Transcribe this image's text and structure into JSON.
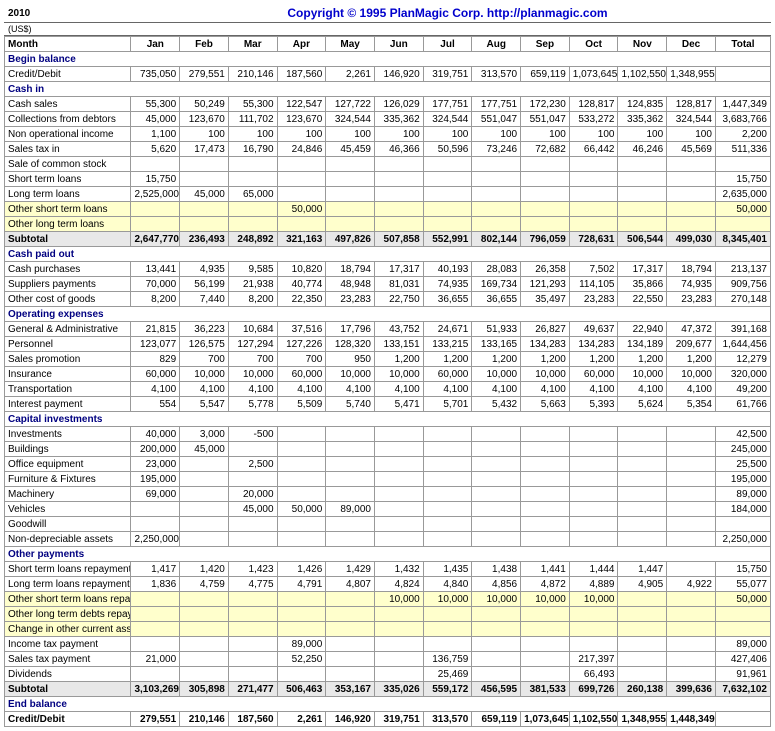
{
  "header": {
    "year": "2010",
    "copyright": "Copyright © 1995 PlanMagic Corp. http://planmagic.com",
    "currency": "(US$)"
  },
  "columns": [
    "Month",
    "Jan",
    "Feb",
    "Mar",
    "Apr",
    "May",
    "Jun",
    "Jul",
    "Aug",
    "Sep",
    "Oct",
    "Nov",
    "Dec",
    "Total"
  ],
  "rows": [
    {
      "type": "section",
      "label": "Begin balance"
    },
    {
      "type": "data",
      "label": "Credit/Debit",
      "v": [
        "735,050",
        "279,551",
        "210,146",
        "187,560",
        "2,261",
        "146,920",
        "319,751",
        "313,570",
        "659,119",
        "1,073,645",
        "1,102,550",
        "1,348,955",
        ""
      ]
    },
    {
      "type": "section",
      "label": "Cash in"
    },
    {
      "type": "data",
      "label": "Cash sales",
      "v": [
        "55,300",
        "50,249",
        "55,300",
        "122,547",
        "127,722",
        "126,029",
        "177,751",
        "177,751",
        "172,230",
        "128,817",
        "124,835",
        "128,817",
        "1,447,349"
      ]
    },
    {
      "type": "data",
      "label": "Collections from debtors",
      "v": [
        "45,000",
        "123,670",
        "111,702",
        "123,670",
        "324,544",
        "335,362",
        "324,544",
        "551,047",
        "551,047",
        "533,272",
        "335,362",
        "324,544",
        "3,683,766"
      ]
    },
    {
      "type": "data",
      "label": "Non operational income",
      "v": [
        "1,100",
        "100",
        "100",
        "100",
        "100",
        "100",
        "100",
        "100",
        "100",
        "100",
        "100",
        "100",
        "2,200"
      ]
    },
    {
      "type": "data",
      "label": "Sales tax in",
      "v": [
        "5,620",
        "17,473",
        "16,790",
        "24,846",
        "45,459",
        "46,366",
        "50,596",
        "73,246",
        "72,682",
        "66,442",
        "46,246",
        "45,569",
        "511,336"
      ]
    },
    {
      "type": "data",
      "label": "Sale of common stock",
      "v": [
        "",
        "",
        "",
        "",
        "",
        "",
        "",
        "",
        "",
        "",
        "",
        "",
        ""
      ]
    },
    {
      "type": "data",
      "label": "Short term loans",
      "v": [
        "15,750",
        "",
        "",
        "",
        "",
        "",
        "",
        "",
        "",
        "",
        "",
        "",
        "15,750"
      ]
    },
    {
      "type": "data",
      "label": "Long term loans",
      "v": [
        "2,525,000",
        "45,000",
        "65,000",
        "",
        "",
        "",
        "",
        "",
        "",
        "",
        "",
        "",
        "2,635,000"
      ]
    },
    {
      "type": "highlight",
      "label": "Other short term loans",
      "v": [
        "",
        "",
        "",
        "50,000",
        "",
        "",
        "",
        "",
        "",
        "",
        "",
        "",
        "50,000"
      ]
    },
    {
      "type": "highlight",
      "label": "Other long term loans",
      "v": [
        "",
        "",
        "",
        "",
        "",
        "",
        "",
        "",
        "",
        "",
        "",
        "",
        ""
      ]
    },
    {
      "type": "subtotal",
      "label": "Subtotal",
      "v": [
        "2,647,770",
        "236,493",
        "248,892",
        "321,163",
        "497,826",
        "507,858",
        "552,991",
        "802,144",
        "796,059",
        "728,631",
        "506,544",
        "499,030",
        "8,345,401"
      ]
    },
    {
      "type": "section",
      "label": "Cash paid out"
    },
    {
      "type": "data",
      "label": "Cash purchases",
      "v": [
        "13,441",
        "4,935",
        "9,585",
        "10,820",
        "18,794",
        "17,317",
        "40,193",
        "28,083",
        "26,358",
        "7,502",
        "17,317",
        "18,794",
        "213,137"
      ]
    },
    {
      "type": "data",
      "label": "Suppliers payments",
      "v": [
        "70,000",
        "56,199",
        "21,938",
        "40,774",
        "48,948",
        "81,031",
        "74,935",
        "169,734",
        "121,293",
        "114,105",
        "35,866",
        "74,935",
        "909,756"
      ]
    },
    {
      "type": "data",
      "label": "Other cost of goods",
      "v": [
        "8,200",
        "7,440",
        "8,200",
        "22,350",
        "23,283",
        "22,750",
        "36,655",
        "36,655",
        "35,497",
        "23,283",
        "22,550",
        "23,283",
        "270,148"
      ]
    },
    {
      "type": "section",
      "label": "Operating expenses"
    },
    {
      "type": "data",
      "label": "General & Administrative",
      "v": [
        "21,815",
        "36,223",
        "10,684",
        "37,516",
        "17,796",
        "43,752",
        "24,671",
        "51,933",
        "26,827",
        "49,637",
        "22,940",
        "47,372",
        "391,168"
      ]
    },
    {
      "type": "data",
      "label": "Personnel",
      "v": [
        "123,077",
        "126,575",
        "127,294",
        "127,226",
        "128,320",
        "133,151",
        "133,215",
        "133,165",
        "134,283",
        "134,283",
        "134,189",
        "209,677",
        "1,644,456"
      ]
    },
    {
      "type": "data",
      "label": "Sales promotion",
      "v": [
        "829",
        "700",
        "700",
        "700",
        "950",
        "1,200",
        "1,200",
        "1,200",
        "1,200",
        "1,200",
        "1,200",
        "1,200",
        "12,279"
      ]
    },
    {
      "type": "data",
      "label": "Insurance",
      "v": [
        "60,000",
        "10,000",
        "10,000",
        "60,000",
        "10,000",
        "10,000",
        "60,000",
        "10,000",
        "10,000",
        "60,000",
        "10,000",
        "10,000",
        "320,000"
      ]
    },
    {
      "type": "data",
      "label": "Transportation",
      "v": [
        "4,100",
        "4,100",
        "4,100",
        "4,100",
        "4,100",
        "4,100",
        "4,100",
        "4,100",
        "4,100",
        "4,100",
        "4,100",
        "4,100",
        "49,200"
      ]
    },
    {
      "type": "data",
      "label": "Interest payment",
      "v": [
        "554",
        "5,547",
        "5,778",
        "5,509",
        "5,740",
        "5,471",
        "5,701",
        "5,432",
        "5,663",
        "5,393",
        "5,624",
        "5,354",
        "61,766"
      ]
    },
    {
      "type": "section",
      "label": "Capital investments"
    },
    {
      "type": "data",
      "label": "Investments",
      "v": [
        "40,000",
        "3,000",
        "-500",
        "",
        "",
        "",
        "",
        "",
        "",
        "",
        "",
        "",
        "42,500"
      ]
    },
    {
      "type": "data",
      "label": "Buildings",
      "v": [
        "200,000",
        "45,000",
        "",
        "",
        "",
        "",
        "",
        "",
        "",
        "",
        "",
        "",
        "245,000"
      ]
    },
    {
      "type": "data",
      "label": "Office equipment",
      "v": [
        "23,000",
        "",
        "2,500",
        "",
        "",
        "",
        "",
        "",
        "",
        "",
        "",
        "",
        "25,500"
      ]
    },
    {
      "type": "data",
      "label": "Furniture & Fixtures",
      "v": [
        "195,000",
        "",
        "",
        "",
        "",
        "",
        "",
        "",
        "",
        "",
        "",
        "",
        "195,000"
      ]
    },
    {
      "type": "data",
      "label": "Machinery",
      "v": [
        "69,000",
        "",
        "20,000",
        "",
        "",
        "",
        "",
        "",
        "",
        "",
        "",
        "",
        "89,000"
      ]
    },
    {
      "type": "data",
      "label": "Vehicles",
      "v": [
        "",
        "",
        "45,000",
        "50,000",
        "89,000",
        "",
        "",
        "",
        "",
        "",
        "",
        "",
        "184,000"
      ]
    },
    {
      "type": "data",
      "label": "Goodwill",
      "v": [
        "",
        "",
        "",
        "",
        "",
        "",
        "",
        "",
        "",
        "",
        "",
        "",
        ""
      ]
    },
    {
      "type": "data",
      "label": "Non-depreciable assets",
      "v": [
        "2,250,000",
        "",
        "",
        "",
        "",
        "",
        "",
        "",
        "",
        "",
        "",
        "",
        "2,250,000"
      ]
    },
    {
      "type": "section",
      "label": "Other payments"
    },
    {
      "type": "data",
      "label": "Short term loans repayment",
      "v": [
        "1,417",
        "1,420",
        "1,423",
        "1,426",
        "1,429",
        "1,432",
        "1,435",
        "1,438",
        "1,441",
        "1,444",
        "1,447",
        "",
        "15,750"
      ]
    },
    {
      "type": "data",
      "label": "Long term loans repayment",
      "v": [
        "1,836",
        "4,759",
        "4,775",
        "4,791",
        "4,807",
        "4,824",
        "4,840",
        "4,856",
        "4,872",
        "4,889",
        "4,905",
        "4,922",
        "55,077"
      ]
    },
    {
      "type": "highlight",
      "label": "Other short term loans repayment",
      "v": [
        "",
        "",
        "",
        "",
        "",
        "10,000",
        "10,000",
        "10,000",
        "10,000",
        "10,000",
        "",
        "",
        "50,000"
      ]
    },
    {
      "type": "highlight",
      "label": "Other long term debts repayment",
      "v": [
        "",
        "",
        "",
        "",
        "",
        "",
        "",
        "",
        "",
        "",
        "",
        "",
        ""
      ]
    },
    {
      "type": "highlight",
      "label": "Change in other current assets",
      "v": [
        "",
        "",
        "",
        "",
        "",
        "",
        "",
        "",
        "",
        "",
        "",
        "",
        ""
      ]
    },
    {
      "type": "data",
      "label": "Income tax payment",
      "v": [
        "",
        "",
        "",
        "89,000",
        "",
        "",
        "",
        "",
        "",
        "",
        "",
        "",
        "89,000"
      ]
    },
    {
      "type": "data",
      "label": "Sales tax payment",
      "v": [
        "21,000",
        "",
        "",
        "52,250",
        "",
        "",
        "136,759",
        "",
        "",
        "217,397",
        "",
        "",
        "427,406"
      ]
    },
    {
      "type": "data",
      "label": "Dividends",
      "v": [
        "",
        "",
        "",
        "",
        "",
        "",
        "25,469",
        "",
        "",
        "66,493",
        "",
        "",
        "91,961"
      ]
    },
    {
      "type": "subtotal",
      "label": "Subtotal",
      "v": [
        "3,103,269",
        "305,898",
        "271,477",
        "506,463",
        "353,167",
        "335,026",
        "559,172",
        "456,595",
        "381,533",
        "699,726",
        "260,138",
        "399,636",
        "7,632,102"
      ]
    },
    {
      "type": "section",
      "label": "End balance"
    },
    {
      "type": "bold",
      "label": "Credit/Debit",
      "v": [
        "279,551",
        "210,146",
        "187,560",
        "2,261",
        "146,920",
        "319,751",
        "313,570",
        "659,119",
        "1,073,645",
        "1,102,550",
        "1,348,955",
        "1,448,349",
        ""
      ]
    }
  ]
}
